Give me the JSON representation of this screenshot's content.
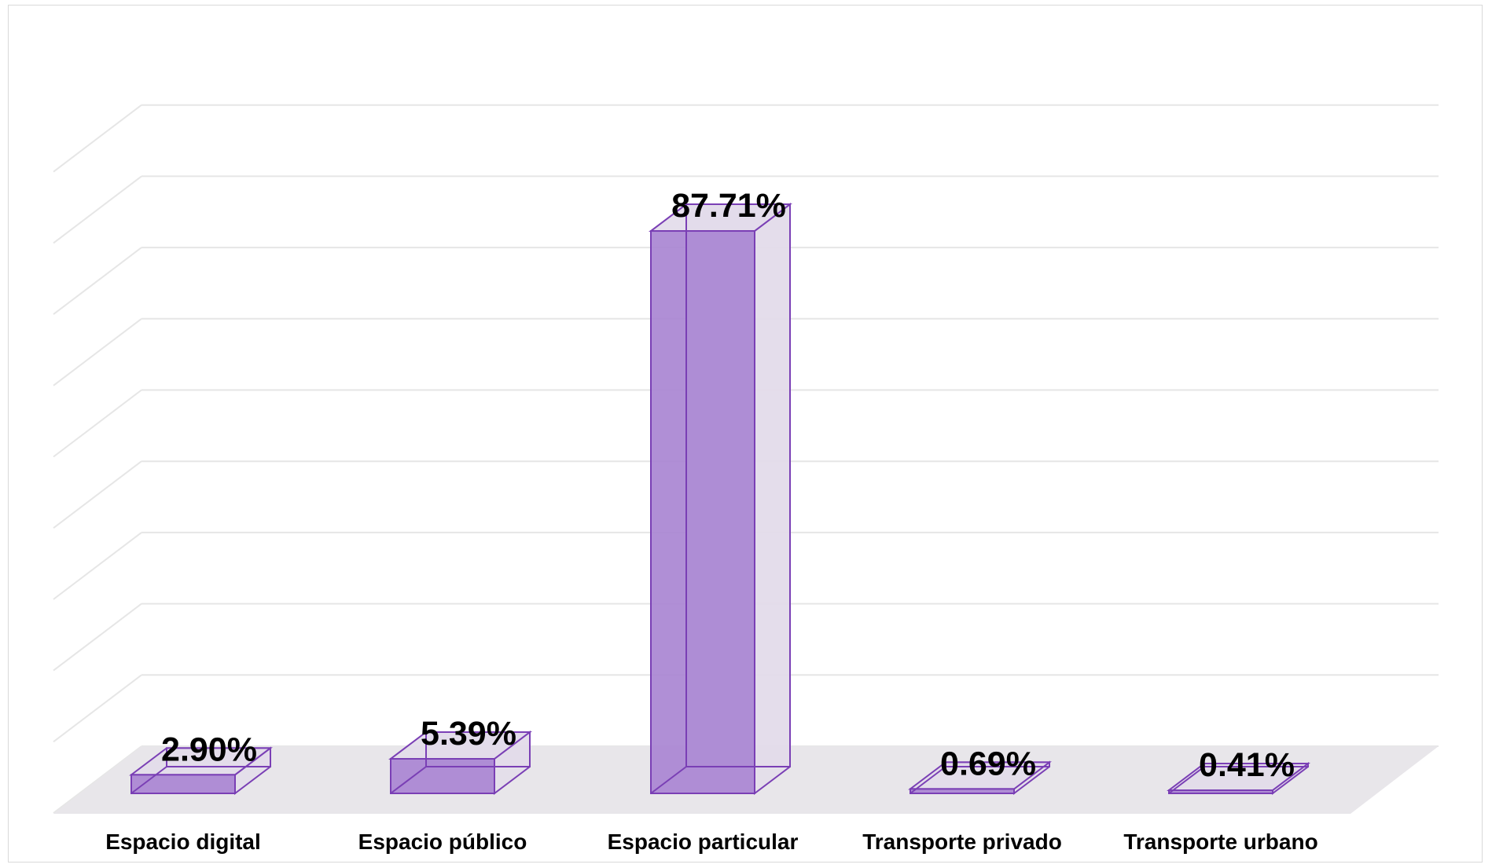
{
  "chart_data": {
    "type": "bar",
    "style": "3d-column",
    "categories": [
      "Espacio digital",
      "Espacio público",
      "Espacio particular",
      "Transporte privado",
      "Transporte urbano"
    ],
    "values": [
      2.9,
      5.39,
      87.71,
      0.69,
      0.41
    ],
    "data_labels": [
      "2.90%",
      "5.39%",
      "87.71%",
      "0.69%",
      "0.41%"
    ],
    "ylim": [
      0,
      100
    ],
    "gridlines": true,
    "legend": "none",
    "colors": {
      "bar_front": "#a986d2",
      "bar_back": "#e2dcea",
      "bar_edge": "#7a3fb5",
      "floor": "#e8e6ea",
      "grid": "#e6e6e6"
    }
  }
}
